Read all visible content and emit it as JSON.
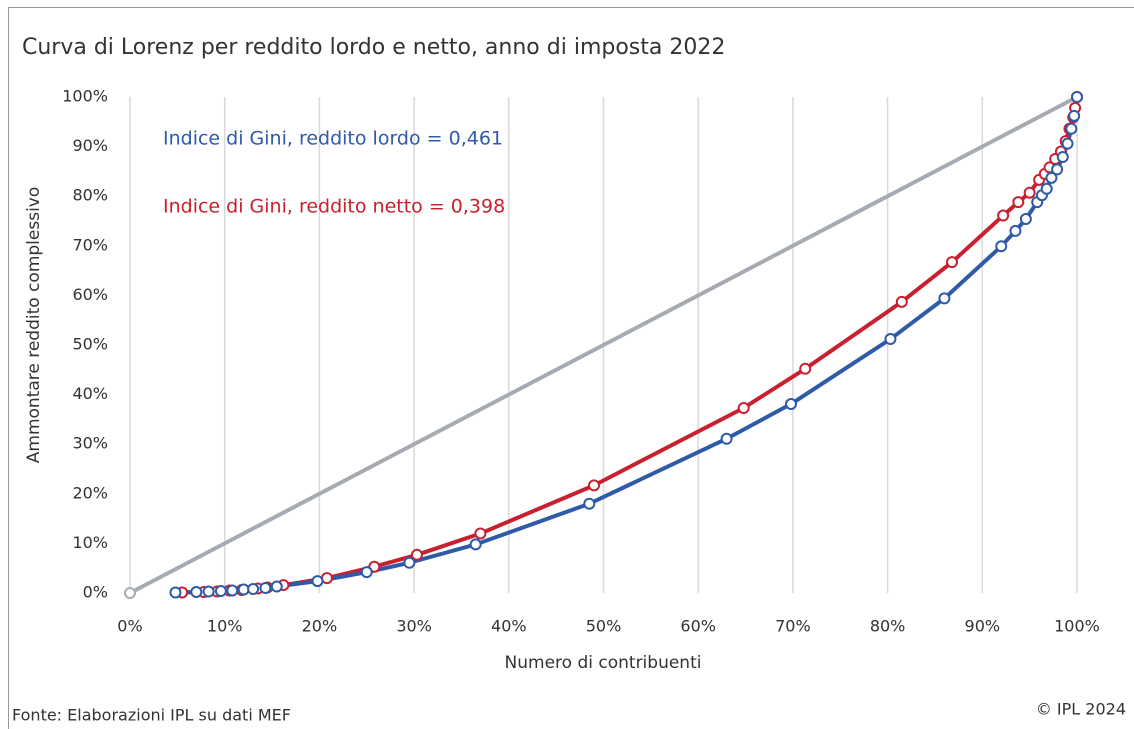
{
  "chart_data": {
    "type": "line",
    "title": "Curva di Lorenz per reddito lordo e netto, anno di imposta 2022",
    "xlabel": "Numero di contribuenti",
    "ylabel": "Ammontare reddito complessivo",
    "annotations": [
      {
        "text": "Indice di Gini, reddito lordo = 0,461",
        "color": "#2e5aa8"
      },
      {
        "text": "Indice di Gini, reddito netto = 0,398",
        "color": "#c8202f"
      }
    ],
    "source": "Fonte: Elaborazioni IPL su dati MEF",
    "copyright": "© IPL 2024",
    "xlim": [
      0,
      100
    ],
    "ylim": [
      0,
      100
    ],
    "xticks": [
      {
        "value": 0,
        "label": "0%"
      },
      {
        "value": 10,
        "label": "10%"
      },
      {
        "value": 20,
        "label": "20%"
      },
      {
        "value": 30,
        "label": "30%"
      },
      {
        "value": 40,
        "label": "40%"
      },
      {
        "value": 50,
        "label": "50%"
      },
      {
        "value": 60,
        "label": "60%"
      },
      {
        "value": 70,
        "label": "70%"
      },
      {
        "value": 80,
        "label": "80%"
      },
      {
        "value": 90,
        "label": "90%"
      },
      {
        "value": 100,
        "label": "100%"
      }
    ],
    "yticks": [
      {
        "value": 0,
        "label": "0%"
      },
      {
        "value": 10,
        "label": "10%"
      },
      {
        "value": 20,
        "label": "20%"
      },
      {
        "value": 30,
        "label": "30%"
      },
      {
        "value": 40,
        "label": "40%"
      },
      {
        "value": 50,
        "label": "50%"
      },
      {
        "value": 60,
        "label": "60%"
      },
      {
        "value": 70,
        "label": "70%"
      },
      {
        "value": 80,
        "label": "80%"
      },
      {
        "value": 90,
        "label": "90%"
      },
      {
        "value": 100,
        "label": "100%"
      }
    ],
    "grid": "x",
    "series": [
      {
        "color": "#a6abb3",
        "x": [
          0,
          100
        ],
        "values": [
          0,
          100
        ]
      },
      {
        "color": "#c8202f",
        "x": [
          5.5,
          7.8,
          9.2,
          10.5,
          11.8,
          13.5,
          14.5,
          16.2,
          20.8,
          25.8,
          30.3,
          37.0,
          49.0,
          64.8,
          71.3,
          81.5,
          86.8,
          92.2,
          93.8,
          95.0,
          96.0,
          96.6,
          97.1,
          97.7,
          98.3,
          98.8,
          99.2,
          99.6,
          99.8,
          100
        ],
        "values": [
          0.1,
          0.2,
          0.3,
          0.5,
          0.6,
          0.9,
          1.1,
          1.6,
          3.0,
          5.3,
          7.7,
          12.0,
          21.7,
          37.3,
          45.2,
          58.7,
          66.7,
          76.1,
          78.8,
          80.7,
          83.3,
          84.5,
          85.8,
          87.5,
          89.0,
          91.1,
          93.6,
          95.9,
          97.8,
          100
        ]
      },
      {
        "color": "#2e5aa8",
        "x": [
          4.8,
          7.0,
          8.3,
          9.6,
          10.8,
          12.0,
          13.0,
          14.3,
          15.5,
          19.8,
          25.0,
          29.5,
          36.5,
          48.5,
          63.0,
          69.8,
          80.3,
          86.0,
          92.0,
          93.5,
          94.6,
          95.8,
          96.3,
          96.8,
          97.3,
          97.9,
          98.5,
          99.0,
          99.4,
          99.7,
          100
        ],
        "values": [
          0.1,
          0.2,
          0.3,
          0.4,
          0.5,
          0.7,
          0.8,
          1.0,
          1.3,
          2.4,
          4.2,
          6.1,
          9.8,
          18.0,
          31.1,
          38.1,
          51.2,
          59.4,
          69.9,
          73.0,
          75.4,
          78.8,
          80.2,
          81.5,
          83.7,
          85.4,
          87.9,
          90.6,
          93.6,
          96.2,
          100
        ]
      }
    ]
  }
}
